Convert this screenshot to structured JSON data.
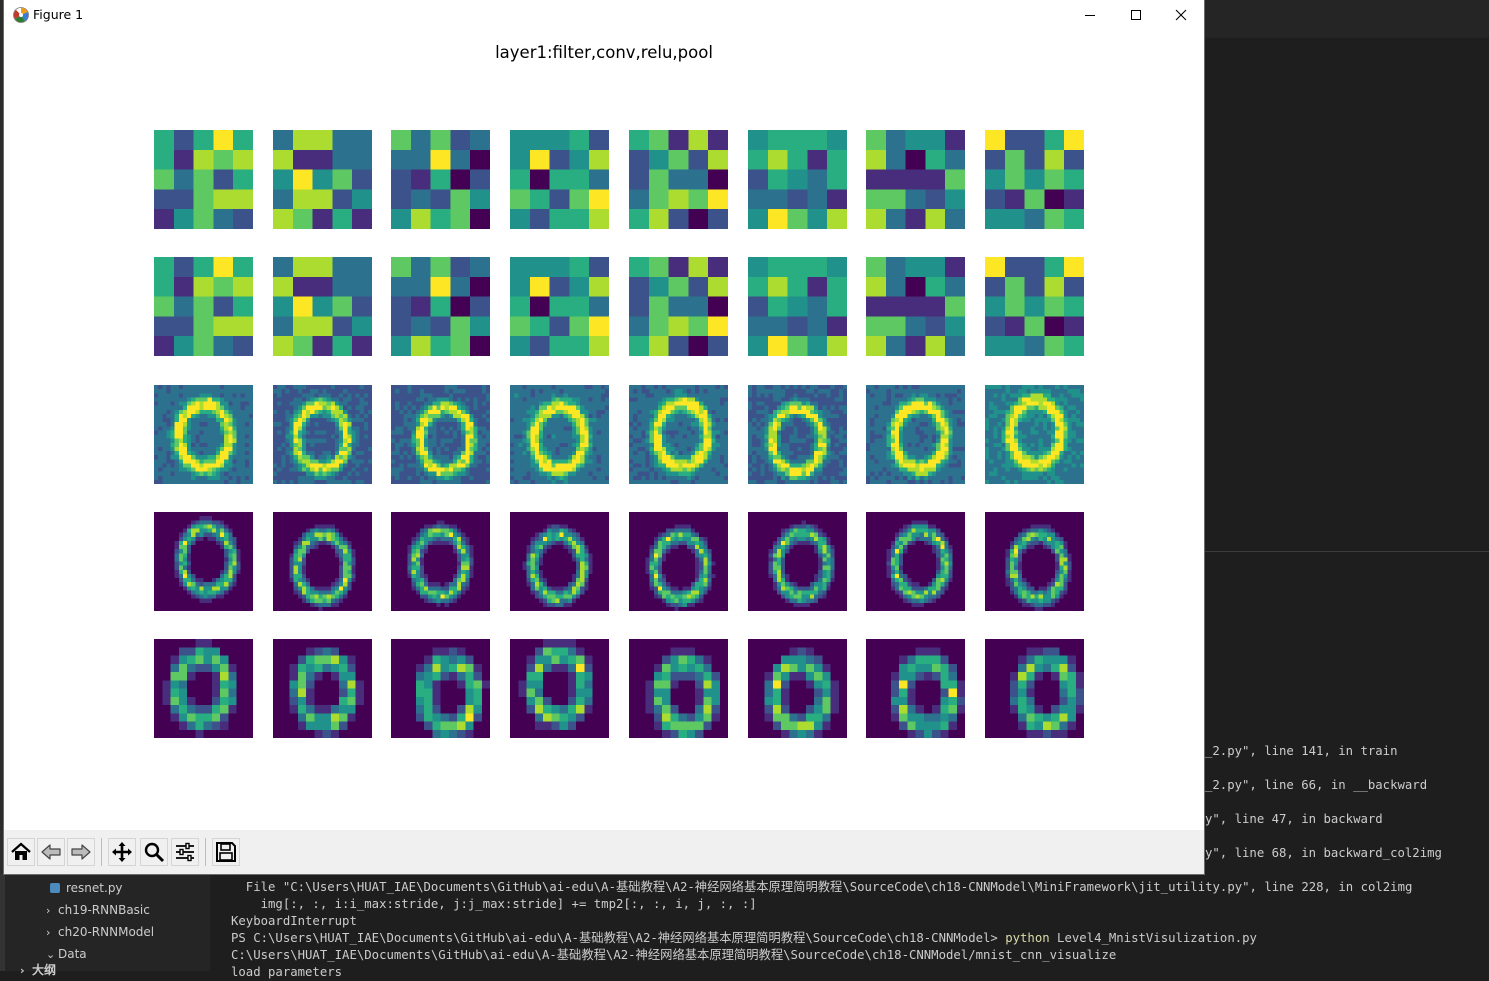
{
  "window": {
    "title": "Figure 1",
    "controls": [
      "minimize",
      "maximize",
      "close"
    ]
  },
  "figure": {
    "title": "layer1:filter,conv,relu,pool",
    "grid": {
      "rows": 5,
      "cols": 8
    },
    "row_kinds": [
      "filter",
      "filter",
      "conv",
      "relu",
      "pool"
    ],
    "colormap": "viridis"
  },
  "toolbar": {
    "buttons": [
      {
        "name": "home-icon"
      },
      {
        "name": "back-icon"
      },
      {
        "name": "forward-icon"
      },
      {
        "name": "pan-icon"
      },
      {
        "name": "zoom-icon"
      },
      {
        "name": "configure-subplots-icon"
      },
      {
        "name": "save-icon"
      }
    ]
  },
  "explorer": {
    "items": [
      {
        "label": "resnet.py",
        "type": "file",
        "expanded": false
      },
      {
        "label": "ch19-RNNBasic",
        "type": "folder",
        "expanded": false
      },
      {
        "label": "ch20-RNNModel",
        "type": "folder",
        "expanded": false
      },
      {
        "label": "Data",
        "type": "folder",
        "expanded": true
      }
    ],
    "outline_label": "大纲"
  },
  "terminal": {
    "right_lines": [
      "_2.py\", line 141, in train",
      "_2.py\", line 66, in __backward",
      "y\", line 47, in backward",
      "y\", line 68, in backward_col2img"
    ],
    "lines": [
      "  File \"C:\\Users\\HUAT_IAE\\Documents\\GitHub\\ai-edu\\A-基础教程\\A2-神经网络基本原理简明教程\\SourceCode\\ch18-CNNModel\\MiniFramework\\jit_utility.py\", line 228, in col2img",
      "    img[:, :, i:i_max:stride, j:j_max:stride] += tmp2[:, :, i, j, :, :]",
      "KeyboardInterrupt",
      "C:\\Users\\HUAT_IAE\\Documents\\GitHub\\ai-edu\\A-基础教程\\A2-神经网络基本原理简明教程\\SourceCode\\ch18-CNNModel/mnist_cnn_visualize",
      "load parameters"
    ],
    "prompt": "PS C:\\Users\\HUAT_IAE\\Documents\\GitHub\\ai-edu\\A-基础教程\\A2-神经网络基本原理简明教程\\SourceCode\\ch18-CNNModel>",
    "command": "python",
    "command_arg": "Level4_MnistVisulization.py"
  },
  "colors": {
    "viridis": [
      "#440154",
      "#472d7b",
      "#3b528b",
      "#2c728e",
      "#21918c",
      "#28ae80",
      "#5ec962",
      "#addc30",
      "#fde725"
    ]
  }
}
